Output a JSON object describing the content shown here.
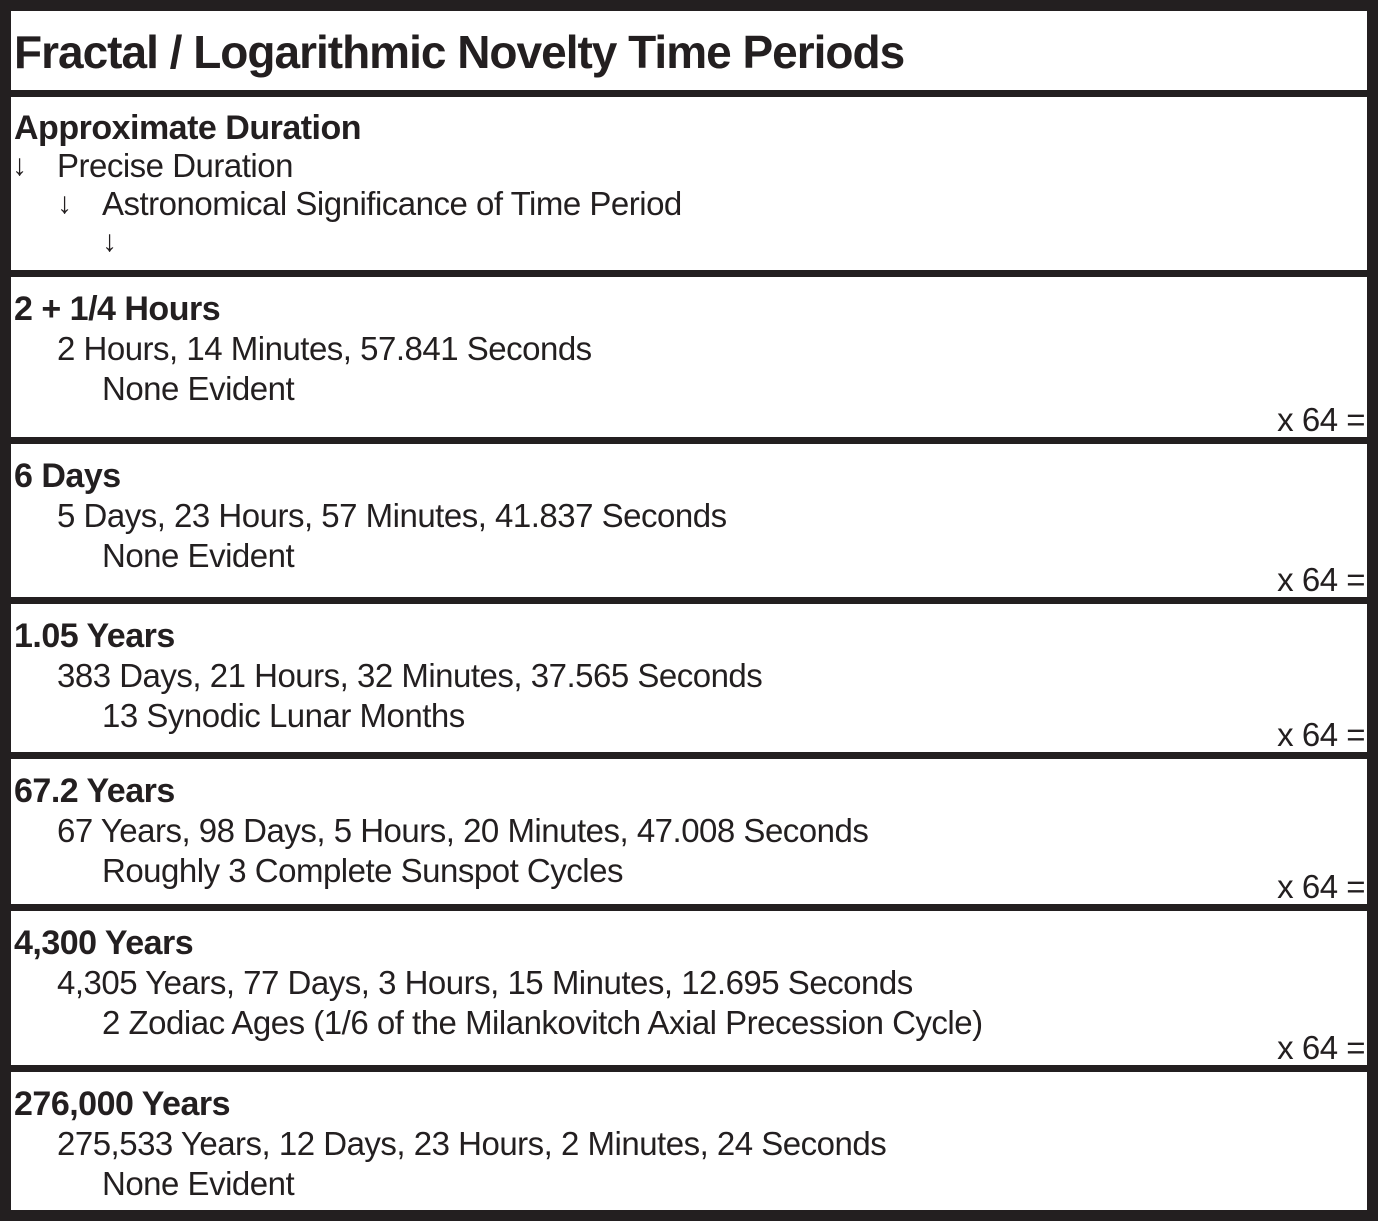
{
  "title": "Fractal / Logarithmic Novelty Time Periods",
  "legend": {
    "arrow_glyph": "↓",
    "level1_label": "Approximate Duration",
    "level2_label": "Precise Duration",
    "level3_label": "Astronomical Significance of Time Period"
  },
  "rows": [
    {
      "approximate": "2 + 1/4 Hours",
      "precise": "2 Hours, 14 Minutes, 57.841 Seconds",
      "significance": "None Evident",
      "multiplier": "x 64 ="
    },
    {
      "approximate": "6 Days",
      "precise": "5 Days, 23 Hours, 57 Minutes, 41.837 Seconds",
      "significance": "None Evident",
      "multiplier": "x 64 ="
    },
    {
      "approximate": "1.05 Years",
      "precise": "383 Days, 21 Hours, 32 Minutes, 37.565 Seconds",
      "significance": "13 Synodic Lunar Months",
      "multiplier": "x 64 ="
    },
    {
      "approximate": "67.2 Years",
      "precise": "67 Years, 98 Days, 5 Hours, 20 Minutes, 47.008 Seconds",
      "significance": "Roughly 3 Complete Sunspot Cycles",
      "multiplier": "x 64 ="
    },
    {
      "approximate": "4,300 Years",
      "precise": "4,305 Years, 77 Days, 3 Hours, 15 Minutes, 12.695 Seconds",
      "significance": "2 Zodiac Ages (1/6 of the Milankovitch Axial Precession Cycle)",
      "multiplier": "x 64 ="
    },
    {
      "approximate": "276,000 Years",
      "precise": "275,533 Years, 12 Days, 23 Hours, 2 Minutes, 24 Seconds",
      "significance": "None Evident",
      "multiplier": ""
    }
  ],
  "colors": {
    "ink": "#231f20",
    "background": "#ffffff"
  }
}
